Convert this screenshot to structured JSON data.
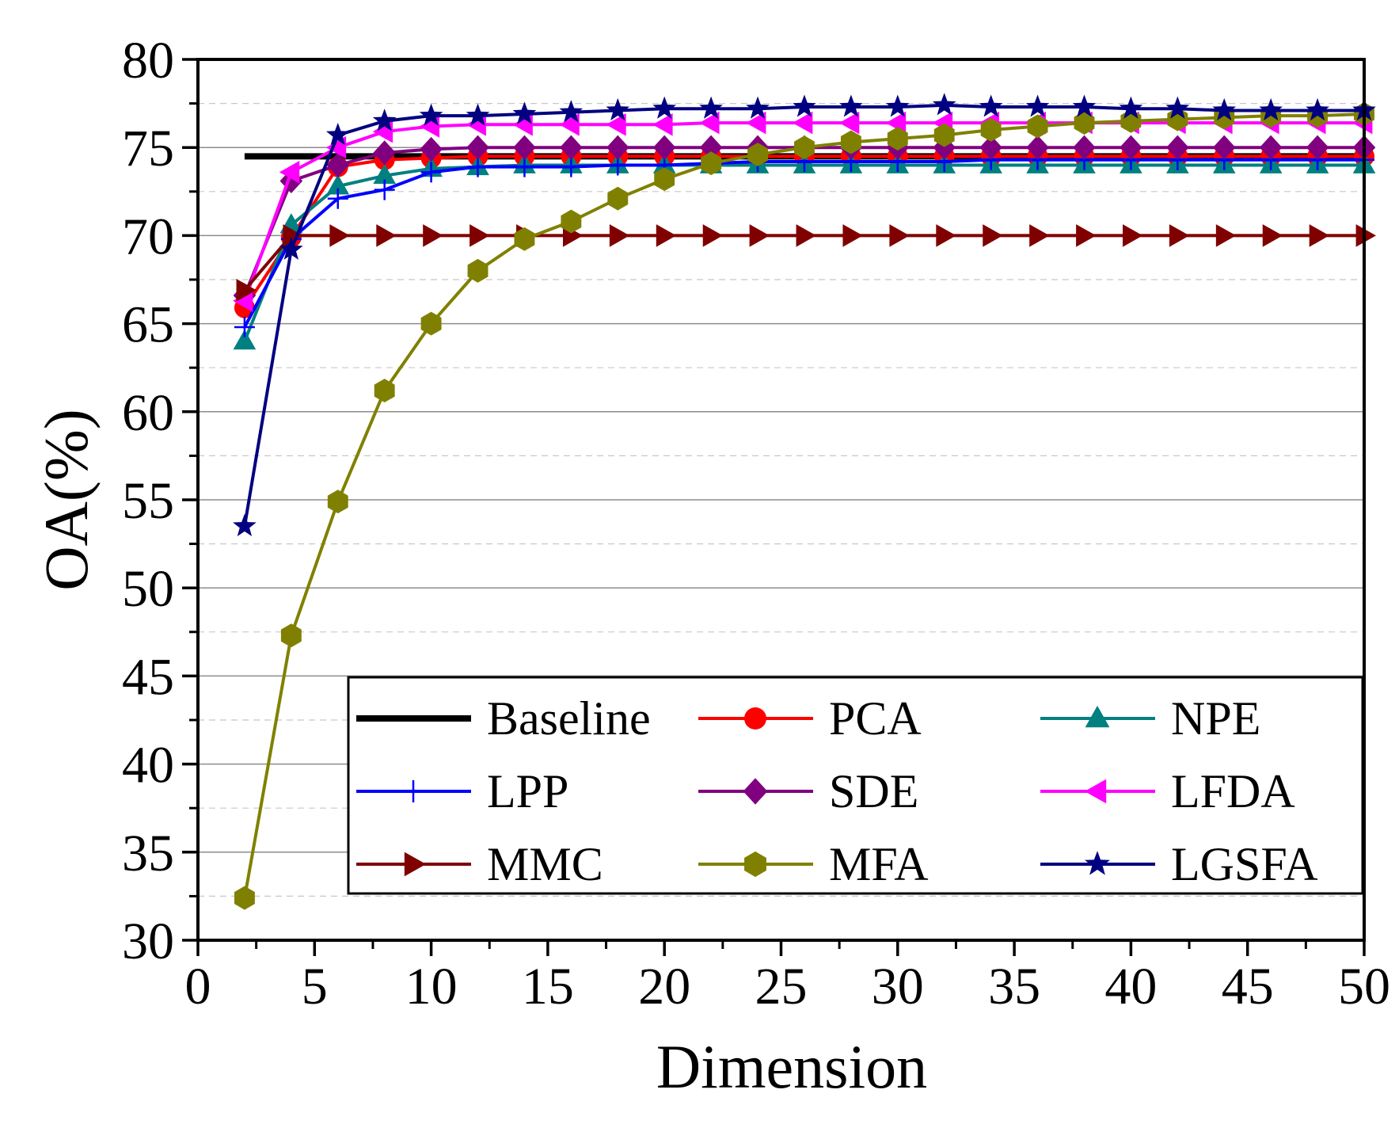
{
  "chart_data": {
    "type": "line",
    "title": "",
    "xlabel": "Dimension",
    "ylabel": "OA(%)",
    "xlim": [
      0,
      50
    ],
    "ylim": [
      30,
      80
    ],
    "xticks": [
      0,
      5,
      10,
      15,
      20,
      25,
      30,
      35,
      40,
      45,
      50
    ],
    "yticks": [
      30,
      35,
      40,
      45,
      50,
      55,
      60,
      65,
      70,
      75,
      80
    ],
    "grid": true,
    "legend_position": "bottom-right",
    "legend_columns": 3,
    "x": [
      2,
      4,
      6,
      8,
      10,
      12,
      14,
      16,
      18,
      20,
      22,
      24,
      26,
      28,
      30,
      32,
      34,
      36,
      38,
      40,
      42,
      44,
      46,
      48,
      50
    ],
    "series": [
      {
        "name": "Baseline",
        "color": "#000000",
        "marker": "none",
        "x": [
          2,
          50
        ],
        "values": [
          74.5,
          74.5
        ]
      },
      {
        "name": "PCA",
        "color": "#ff0000",
        "marker": "circle",
        "values": [
          65.9,
          69.9,
          73.9,
          74.3,
          74.4,
          74.5,
          74.5,
          74.5,
          74.5,
          74.5,
          74.5,
          74.5,
          74.5,
          74.5,
          74.5,
          74.5,
          74.5,
          74.5,
          74.5,
          74.5,
          74.5,
          74.5,
          74.5,
          74.5,
          74.5
        ]
      },
      {
        "name": "NPE",
        "color": "#008080",
        "marker": "triangle-up",
        "values": [
          64.0,
          70.6,
          72.8,
          73.4,
          73.8,
          73.9,
          74.0,
          74.0,
          74.0,
          74.0,
          74.0,
          74.0,
          74.0,
          74.0,
          74.0,
          74.0,
          74.0,
          74.0,
          74.0,
          74.0,
          74.0,
          74.0,
          74.0,
          74.0,
          74.0
        ]
      },
      {
        "name": "LPP",
        "color": "#0000ff",
        "marker": "plus",
        "values": [
          64.8,
          69.8,
          72.1,
          72.6,
          73.6,
          73.9,
          73.9,
          73.9,
          74.0,
          74.0,
          74.1,
          74.2,
          74.2,
          74.2,
          74.2,
          74.2,
          74.3,
          74.3,
          74.3,
          74.3,
          74.3,
          74.3,
          74.3,
          74.3,
          74.3
        ]
      },
      {
        "name": "SDE",
        "color": "#800080",
        "marker": "diamond",
        "values": [
          66.6,
          73.1,
          74.0,
          74.7,
          74.9,
          75.0,
          75.0,
          75.0,
          75.0,
          75.0,
          75.0,
          75.0,
          75.0,
          75.0,
          75.0,
          75.0,
          75.0,
          75.0,
          75.0,
          75.0,
          75.0,
          75.0,
          75.0,
          75.0,
          75.0
        ]
      },
      {
        "name": "LFDA",
        "color": "#ff00ff",
        "marker": "triangle-left",
        "values": [
          66.3,
          73.6,
          75.0,
          75.9,
          76.2,
          76.3,
          76.3,
          76.3,
          76.3,
          76.3,
          76.4,
          76.4,
          76.4,
          76.4,
          76.4,
          76.4,
          76.4,
          76.4,
          76.4,
          76.4,
          76.4,
          76.4,
          76.4,
          76.4,
          76.4
        ]
      },
      {
        "name": "MMC",
        "color": "#800000",
        "marker": "triangle-right",
        "values": [
          66.9,
          70.0,
          70.0,
          70.0,
          70.0,
          70.0,
          70.0,
          70.0,
          70.0,
          70.0,
          70.0,
          70.0,
          70.0,
          70.0,
          70.0,
          70.0,
          70.0,
          70.0,
          70.0,
          70.0,
          70.0,
          70.0,
          70.0,
          70.0,
          70.0
        ]
      },
      {
        "name": "MFA",
        "color": "#808000",
        "marker": "hexagon",
        "values": [
          32.4,
          47.3,
          54.9,
          61.2,
          65.0,
          68.0,
          69.8,
          70.8,
          72.1,
          73.2,
          74.1,
          74.6,
          75.0,
          75.3,
          75.5,
          75.7,
          76.0,
          76.2,
          76.4,
          76.5,
          76.6,
          76.7,
          76.8,
          76.8,
          76.9
        ]
      },
      {
        "name": "LGSFA",
        "color": "#000080",
        "marker": "star",
        "values": [
          53.5,
          69.2,
          75.7,
          76.5,
          76.8,
          76.8,
          76.9,
          77.0,
          77.1,
          77.2,
          77.2,
          77.2,
          77.3,
          77.3,
          77.3,
          77.4,
          77.3,
          77.3,
          77.3,
          77.2,
          77.2,
          77.1,
          77.1,
          77.1,
          77.1
        ]
      }
    ]
  }
}
